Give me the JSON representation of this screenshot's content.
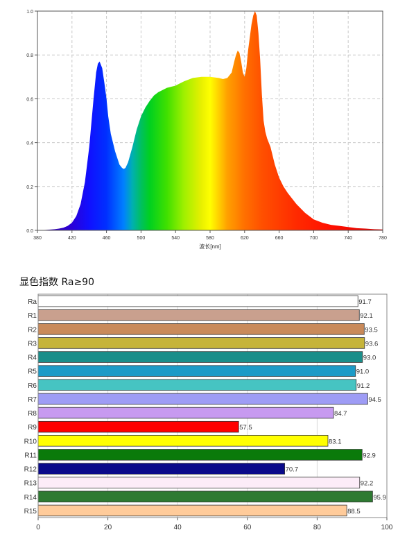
{
  "spectrum": {
    "chart_data": {
      "type": "area",
      "title": "",
      "xlabel": "波长[nm]",
      "ylabel": "",
      "xlim": [
        380,
        780
      ],
      "ylim": [
        0,
        1.0
      ],
      "x_ticks": [
        "380",
        "420",
        "460",
        "500",
        "540",
        "580",
        "620",
        "660",
        "700",
        "740",
        "780"
      ],
      "y_ticks": [
        "0.0",
        "0.2",
        "0.4",
        "0.6",
        "0.8",
        "1.0"
      ],
      "grid": true,
      "x": [
        380,
        390,
        400,
        405,
        410,
        415,
        420,
        425,
        430,
        435,
        440,
        445,
        448,
        450,
        452,
        455,
        458,
        460,
        462,
        465,
        470,
        475,
        478,
        480,
        482,
        485,
        490,
        495,
        500,
        505,
        510,
        515,
        520,
        525,
        530,
        535,
        540,
        545,
        550,
        560,
        570,
        580,
        590,
        595,
        600,
        605,
        608,
        610,
        612,
        614,
        616,
        618,
        620,
        622,
        624,
        626,
        628,
        630,
        632,
        634,
        636,
        638,
        640,
        642,
        644,
        646,
        648,
        650,
        655,
        660,
        665,
        670,
        680,
        690,
        700,
        710,
        720,
        730,
        740,
        750,
        760,
        770,
        780
      ],
      "y": [
        0.0,
        0.002,
        0.005,
        0.008,
        0.012,
        0.02,
        0.035,
        0.065,
        0.12,
        0.22,
        0.38,
        0.6,
        0.72,
        0.76,
        0.77,
        0.74,
        0.66,
        0.6,
        0.52,
        0.44,
        0.36,
        0.3,
        0.285,
        0.28,
        0.285,
        0.31,
        0.38,
        0.46,
        0.52,
        0.56,
        0.59,
        0.615,
        0.63,
        0.64,
        0.65,
        0.655,
        0.66,
        0.67,
        0.68,
        0.695,
        0.7,
        0.7,
        0.695,
        0.69,
        0.695,
        0.72,
        0.77,
        0.8,
        0.82,
        0.81,
        0.77,
        0.72,
        0.7,
        0.74,
        0.82,
        0.88,
        0.94,
        0.98,
        1.0,
        0.98,
        0.9,
        0.78,
        0.62,
        0.5,
        0.45,
        0.42,
        0.4,
        0.38,
        0.3,
        0.24,
        0.2,
        0.17,
        0.12,
        0.08,
        0.05,
        0.035,
        0.025,
        0.02,
        0.015,
        0.01,
        0.008,
        0.005,
        0.004
      ]
    }
  },
  "cri": {
    "title": "显色指数 Ra≥90",
    "chart_data": {
      "type": "bar",
      "orientation": "horizontal",
      "categories": [
        "Ra",
        "R1",
        "R2",
        "R3",
        "R4",
        "R5",
        "R6",
        "R7",
        "R8",
        "R9",
        "R10",
        "R11",
        "R12",
        "R13",
        "R14",
        "R15"
      ],
      "values": [
        91.7,
        92.1,
        93.5,
        93.6,
        93.0,
        91.0,
        91.2,
        94.5,
        84.7,
        57.5,
        83.1,
        92.9,
        70.7,
        92.2,
        95.9,
        88.5
      ],
      "value_labels": [
        "91.7",
        "92.1",
        "93.5",
        "93.6",
        "93.0",
        "91.0",
        "91.2",
        "94.5",
        "84.7",
        "57.5",
        "83.1",
        "92.9",
        "70.7",
        "92.2",
        "95.9",
        "88.5"
      ],
      "colors": [
        "#ffffff",
        "#c9a08e",
        "#c98a5a",
        "#c6b43a",
        "#1a8e8a",
        "#1c9bc7",
        "#46c4c2",
        "#9e9cf5",
        "#c79af0",
        "#ff0000",
        "#ffff00",
        "#0a7a0a",
        "#0a0a8a",
        "#fcecf8",
        "#2e7a32",
        "#ffcb9a"
      ],
      "x_ticks": [
        "0",
        "20",
        "40",
        "60",
        "80",
        "100"
      ],
      "xlim": [
        0,
        100
      ],
      "grid": true
    }
  }
}
